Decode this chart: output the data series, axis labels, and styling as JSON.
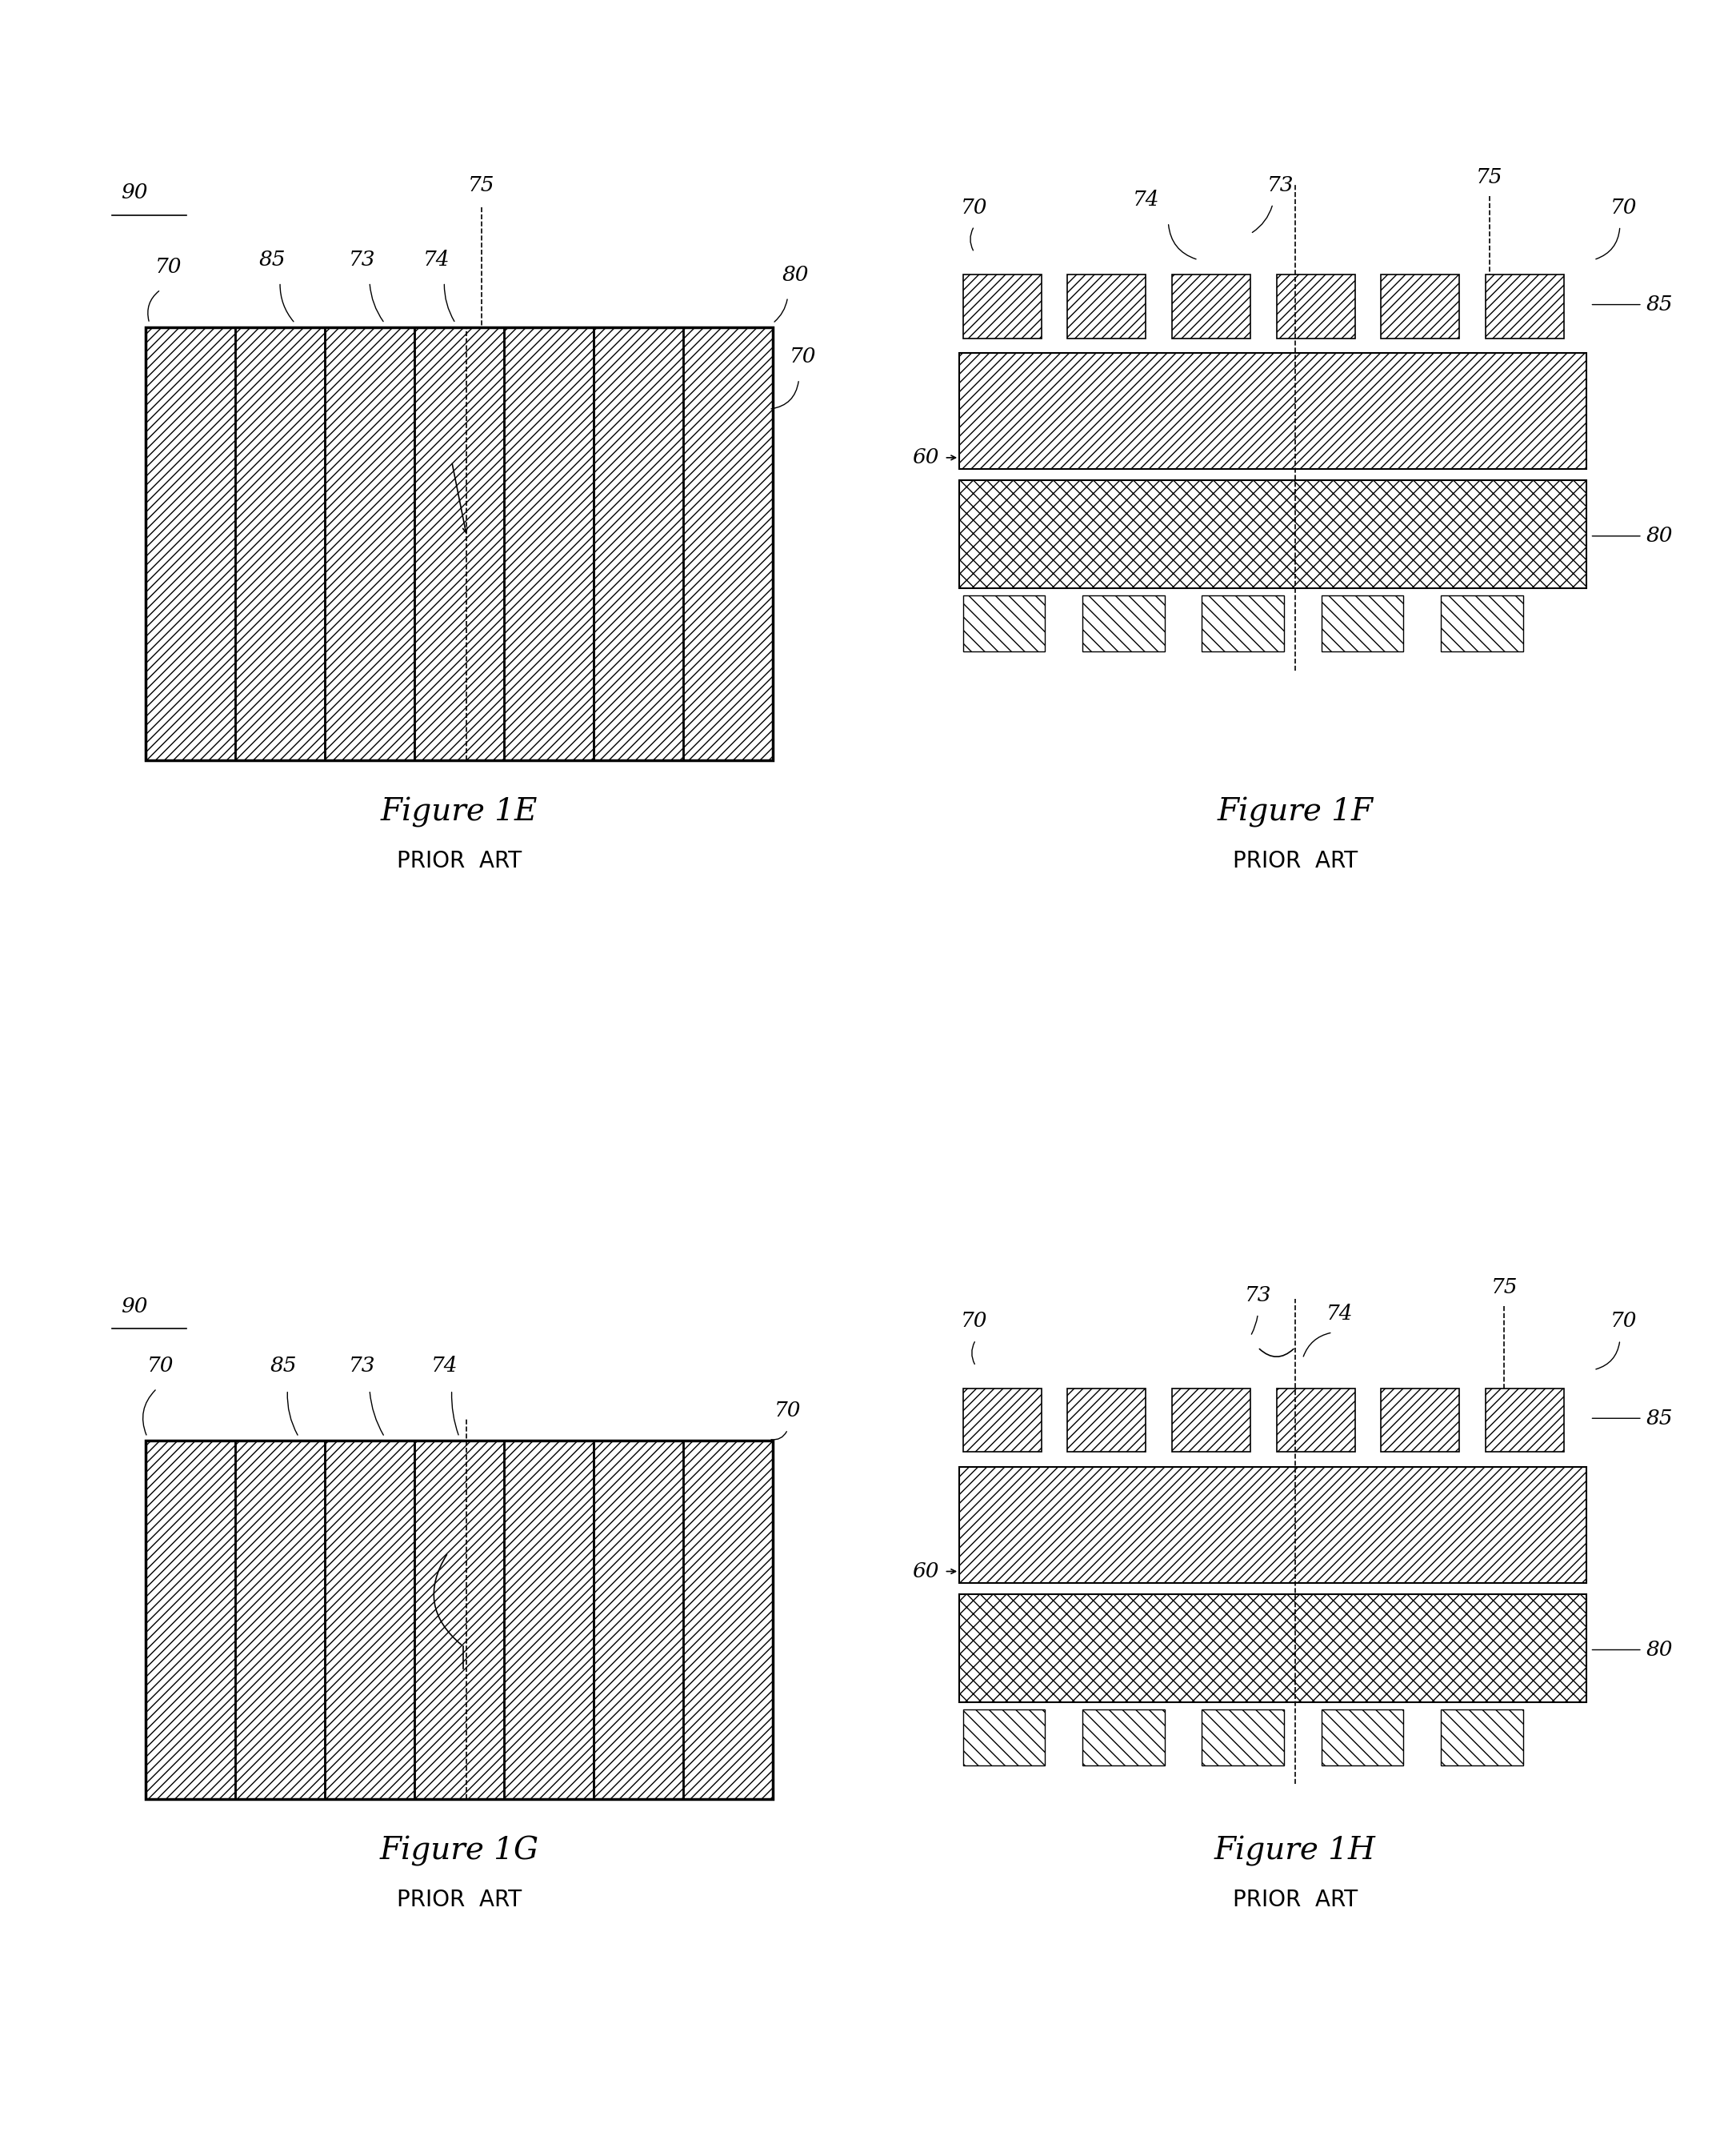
{
  "fig_width": 21.5,
  "fig_height": 26.94,
  "background": "#ffffff",
  "figures": [
    "Figure 1E",
    "Figure 1F",
    "Figure 1G",
    "Figure 1H"
  ],
  "subtitles": [
    "PRIOR ART",
    "PRIOR ART",
    "PRIOR ART",
    "PRIOR ART"
  ],
  "title_fontsize": 28,
  "subtitle_fontsize": 20,
  "label_fontsize": 19,
  "hatch_color": "#000000",
  "line_color": "#000000"
}
